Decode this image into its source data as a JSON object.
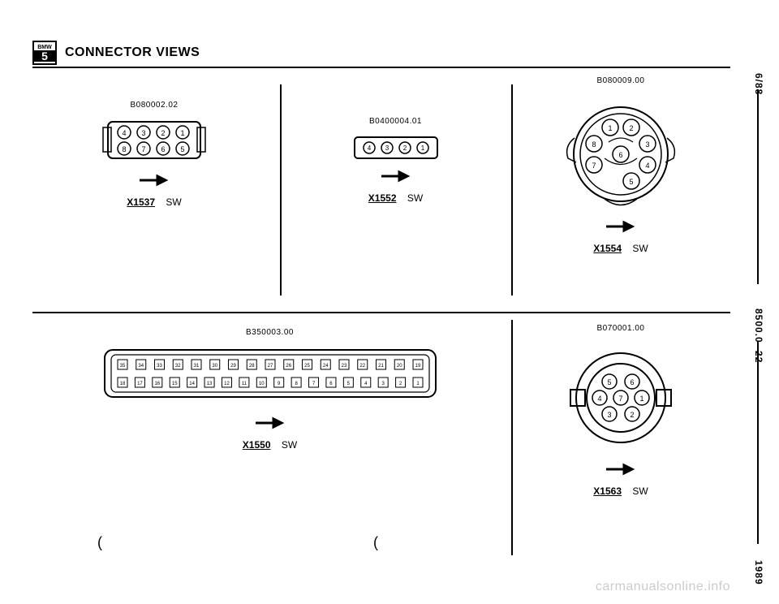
{
  "header": {
    "logo_top": "BMW",
    "logo_bot": "5",
    "title": "CONNECTOR VIEWS"
  },
  "side": {
    "top": "6/88",
    "mid": "8500.0- 22",
    "bot": "1989"
  },
  "connectors": {
    "c1": {
      "part": "B080002.02",
      "x": "X1537",
      "color": "SW",
      "pins_top": [
        "4",
        "3",
        "2",
        "1"
      ],
      "pins_bot": [
        "8",
        "7",
        "6",
        "5"
      ]
    },
    "c2": {
      "part": "B0400004.01",
      "x": "X1552",
      "color": "SW",
      "pins": [
        "4",
        "3",
        "2",
        "1"
      ]
    },
    "c3": {
      "part": "B080009.00",
      "x": "X1554",
      "color": "SW",
      "pins": [
        "1",
        "2",
        "3",
        "4",
        "5",
        "6",
        "7",
        "8"
      ]
    },
    "c4": {
      "part": "B350003.00",
      "x": "X1550",
      "color": "SW",
      "pins_top": [
        "35",
        "34",
        "33",
        "32",
        "31",
        "30",
        "29",
        "28",
        "27",
        "26",
        "25",
        "24",
        "23",
        "22",
        "21",
        "20",
        "19"
      ],
      "pins_bot": [
        "18",
        "17",
        "16",
        "15",
        "14",
        "13",
        "12",
        "11",
        "10",
        "9",
        "8",
        "7",
        "6",
        "5",
        "4",
        "3",
        "2",
        "1"
      ]
    },
    "c5": {
      "part": "B070001.00",
      "x": "X1563",
      "color": "SW",
      "pins": [
        "1",
        "2",
        "3",
        "4",
        "5",
        "6",
        "7"
      ]
    }
  },
  "watermark": "carmanualsonline.info",
  "colors": {
    "stroke": "#000000",
    "bg": "#ffffff"
  }
}
